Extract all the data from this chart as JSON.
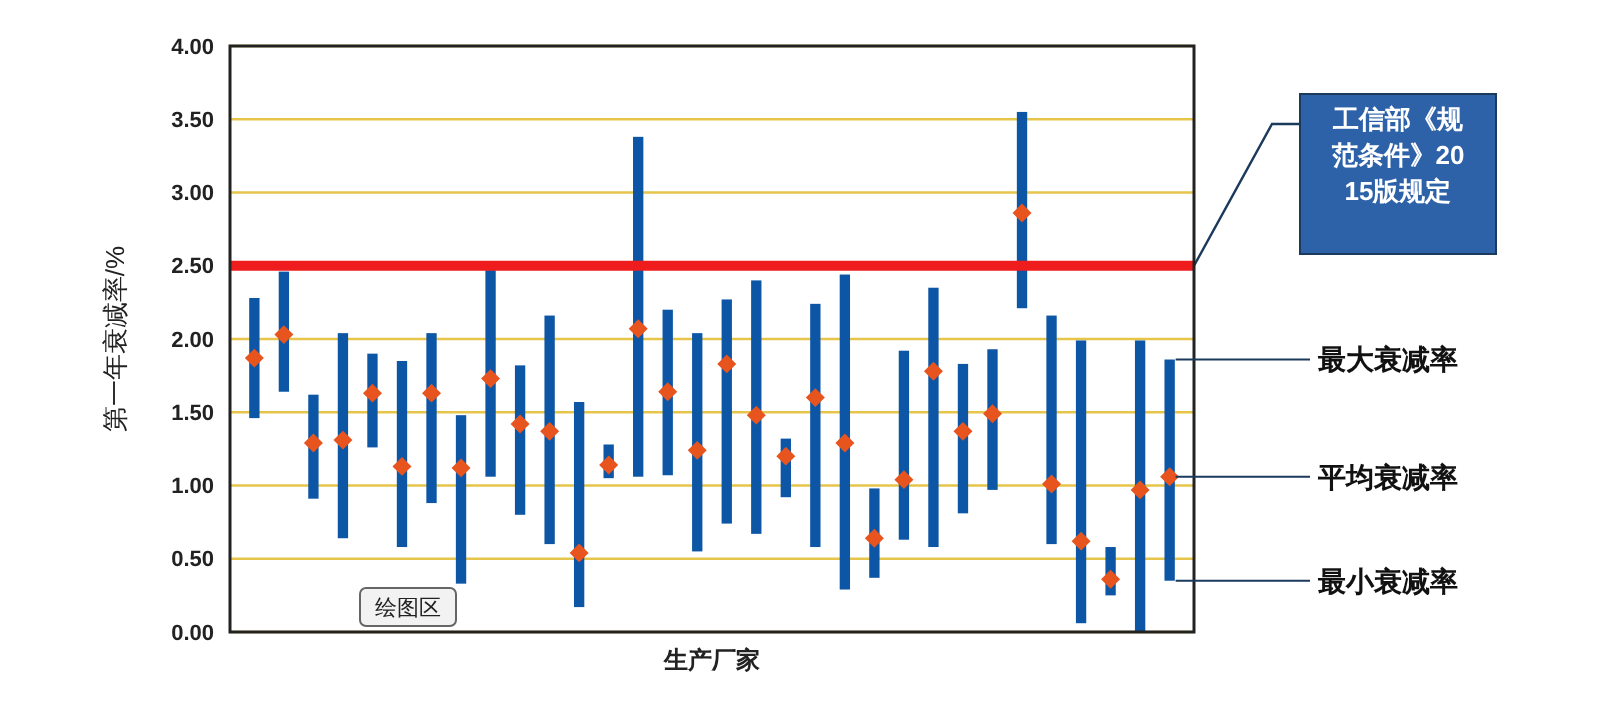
{
  "chart_data": {
    "type": "bar",
    "ylabel": "第一年衰减率/%",
    "xlabel": "生产厂家",
    "categories": [
      null,
      null,
      null,
      null,
      null,
      null,
      null,
      null,
      null,
      null,
      null,
      null,
      null,
      null,
      null,
      null,
      null,
      null,
      null,
      null,
      null,
      null,
      null,
      null,
      null,
      null,
      null,
      null,
      null,
      null,
      null,
      null
    ],
    "series": [
      {
        "color": "#0d56a6",
        "base": [
          1.46,
          1.64,
          0.91,
          0.64,
          1.26,
          0.58,
          0.88,
          0.33,
          1.06,
          0.8,
          0.6,
          0.17,
          1.05,
          1.06,
          1.07,
          0.55,
          0.74,
          0.67,
          0.92,
          0.58,
          0.29,
          0.37,
          0.63,
          0.58,
          0.81,
          0.97,
          2.21,
          0.6,
          0.06,
          0.25,
          0.0,
          0.35
        ],
        "values": [
          0.82,
          0.82,
          0.71,
          1.4,
          0.64,
          1.27,
          1.16,
          1.15,
          1.41,
          1.02,
          1.56,
          1.4,
          0.23,
          2.32,
          1.13,
          1.49,
          1.53,
          1.73,
          0.4,
          1.66,
          2.15,
          0.61,
          1.29,
          1.77,
          1.02,
          0.96,
          1.34,
          1.56,
          1.93,
          0.33,
          1.99,
          1.51
        ]
      },
      {
        "type": "scatter",
        "color": "#e8541e",
        "marker": "diamond",
        "values": [
          1.87,
          2.03,
          1.29,
          1.31,
          1.63,
          1.13,
          1.63,
          1.12,
          1.73,
          1.42,
          1.37,
          0.54,
          1.14,
          2.07,
          1.64,
          1.24,
          1.83,
          1.48,
          1.2,
          1.6,
          1.29,
          0.64,
          1.04,
          1.78,
          1.37,
          1.49,
          2.86,
          1.01,
          0.62,
          0.36,
          0.97,
          1.06
        ]
      }
    ],
    "ylim": [
      0,
      4
    ],
    "yticks": [
      {
        "value": 0,
        "label": "0.00"
      },
      {
        "value": 0.5,
        "label": "0.50"
      },
      {
        "value": 1,
        "label": "1.00"
      },
      {
        "value": 1.5,
        "label": "1.50"
      },
      {
        "value": 2,
        "label": "2.00"
      },
      {
        "value": 2.5,
        "label": "2.50"
      },
      {
        "value": 3,
        "label": "3.00"
      },
      {
        "value": 3.5,
        "label": "3.50"
      },
      {
        "value": 4,
        "label": "4.00"
      }
    ],
    "grid": "y",
    "ref_lines": [
      {
        "axis": "y",
        "value": 2.5,
        "label": "工信部《规范条件》2015版规定",
        "color": "#ee1c1c"
      }
    ],
    "annotations": [
      "最大衰减率",
      "平均衰减率",
      "最小衰减率",
      "绘图区"
    ]
  }
}
